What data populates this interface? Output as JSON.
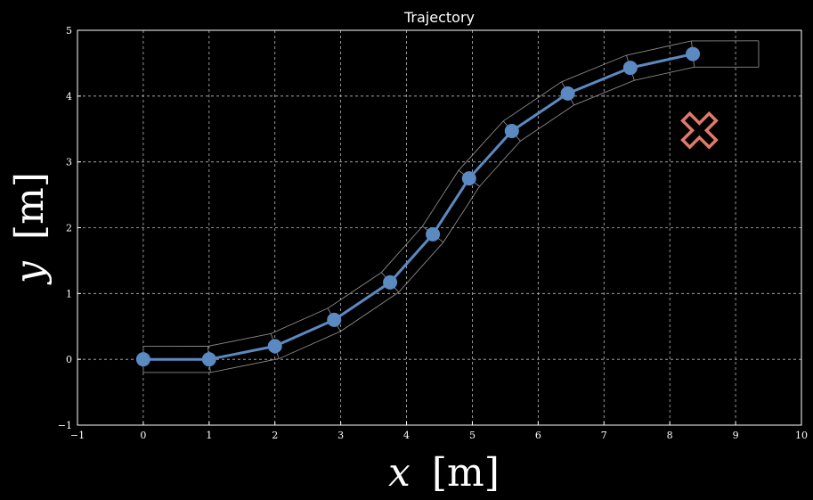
{
  "chart_data": {
    "type": "line",
    "title": "Trajectory",
    "xlabel": {
      "var": "x",
      "unit": "[m]"
    },
    "ylabel": {
      "var": "y",
      "unit": "[m]"
    },
    "xlim": [
      -1,
      10
    ],
    "ylim": [
      -1,
      5
    ],
    "xticks": [
      -1,
      0,
      1,
      2,
      3,
      4,
      5,
      6,
      7,
      8,
      9,
      10
    ],
    "yticks": [
      -1,
      0,
      1,
      2,
      3,
      4,
      5
    ],
    "grid": true,
    "series": [
      {
        "color": "#5b8ac2",
        "x": [
          0,
          1,
          2,
          2.9,
          3.75,
          4.4,
          4.95,
          5.6,
          6.45,
          7.4,
          8.35
        ],
        "y": [
          0,
          0,
          0.2,
          0.6,
          1.17,
          1.9,
          2.75,
          3.47,
          4.04,
          4.43,
          4.64
        ]
      }
    ],
    "target": {
      "x": 8.45,
      "y": 3.48,
      "marker": "x",
      "color": "#e07b6a"
    },
    "corridor_half_width": 0.2,
    "corridor_end_x": 9.35
  }
}
